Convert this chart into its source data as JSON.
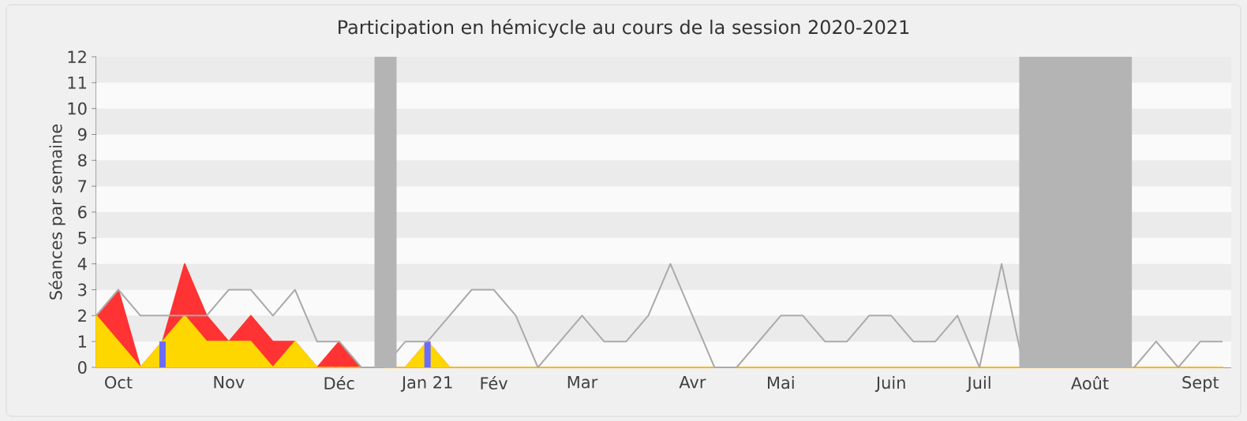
{
  "chart_data": {
    "type": "area",
    "title": "Participation en hémicycle au cours de la session 2020-2021",
    "ylabel": "Séances par semaine",
    "categories": [
      null,
      "Oct",
      null,
      null,
      null,
      null,
      "Nov",
      null,
      null,
      null,
      null,
      "Déc",
      null,
      null,
      null,
      "Jan 21",
      null,
      null,
      "Fév",
      null,
      null,
      null,
      "Mar",
      null,
      null,
      null,
      null,
      "Avr",
      null,
      null,
      null,
      "Mai",
      null,
      null,
      null,
      null,
      "Juin",
      null,
      null,
      null,
      "Juil",
      null,
      null,
      null,
      null,
      "Août",
      null,
      null,
      null,
      null,
      "Sept",
      null
    ],
    "ylim": [
      0,
      12
    ],
    "yticks": [
      0,
      1,
      2,
      3,
      4,
      5,
      6,
      7,
      8,
      9,
      10,
      11,
      12
    ],
    "series": [
      {
        "type": "line",
        "color": "#aaaaaa",
        "values": [
          2,
          3,
          2,
          2,
          2,
          2,
          3,
          3,
          2,
          3,
          1,
          1,
          0,
          0,
          1,
          1,
          2,
          3,
          3,
          2,
          0,
          1,
          2,
          1,
          1,
          2,
          4,
          2,
          0,
          0,
          1,
          2,
          2,
          1,
          1,
          2,
          2,
          1,
          1,
          2,
          0,
          4,
          0,
          null,
          null,
          null,
          null,
          0,
          1,
          0,
          1,
          1
        ]
      },
      {
        "color": "#ff3333",
        "values": [
          2,
          3,
          0,
          1,
          4,
          2,
          1,
          2,
          1,
          1,
          0,
          1,
          0,
          0,
          0,
          1,
          0,
          0,
          0,
          0,
          0,
          0,
          0,
          0,
          0,
          0,
          0,
          0,
          0,
          0,
          0,
          0,
          0,
          0,
          0,
          0,
          0,
          0,
          0,
          0,
          0,
          0,
          0,
          0,
          0,
          0,
          0,
          0,
          0,
          0,
          0,
          0
        ]
      },
      {
        "color": "#ffd700",
        "values": [
          2,
          1,
          0,
          1,
          2,
          1,
          1,
          1,
          0,
          1,
          0,
          0,
          0,
          0,
          0,
          1,
          0,
          0,
          0,
          0,
          0,
          0,
          0,
          0,
          0,
          0,
          0,
          0,
          0,
          0,
          0,
          0,
          0,
          0,
          0,
          0,
          0,
          0,
          0,
          0,
          0,
          0,
          0,
          0,
          0,
          0,
          0,
          0,
          0,
          0,
          0,
          0
        ]
      },
      {
        "type": "bar",
        "color": "#6b6bff",
        "values": [
          null,
          null,
          null,
          1,
          null,
          null,
          null,
          null,
          null,
          null,
          null,
          null,
          null,
          null,
          null,
          1,
          null,
          null,
          null,
          null,
          null,
          null,
          null,
          null,
          null,
          null,
          null,
          null,
          null,
          null,
          null,
          null,
          null,
          null,
          null,
          null,
          null,
          null,
          null,
          null,
          null,
          null,
          null,
          null,
          null,
          null,
          null,
          null,
          null,
          null,
          null,
          null
        ]
      }
    ]
  }
}
